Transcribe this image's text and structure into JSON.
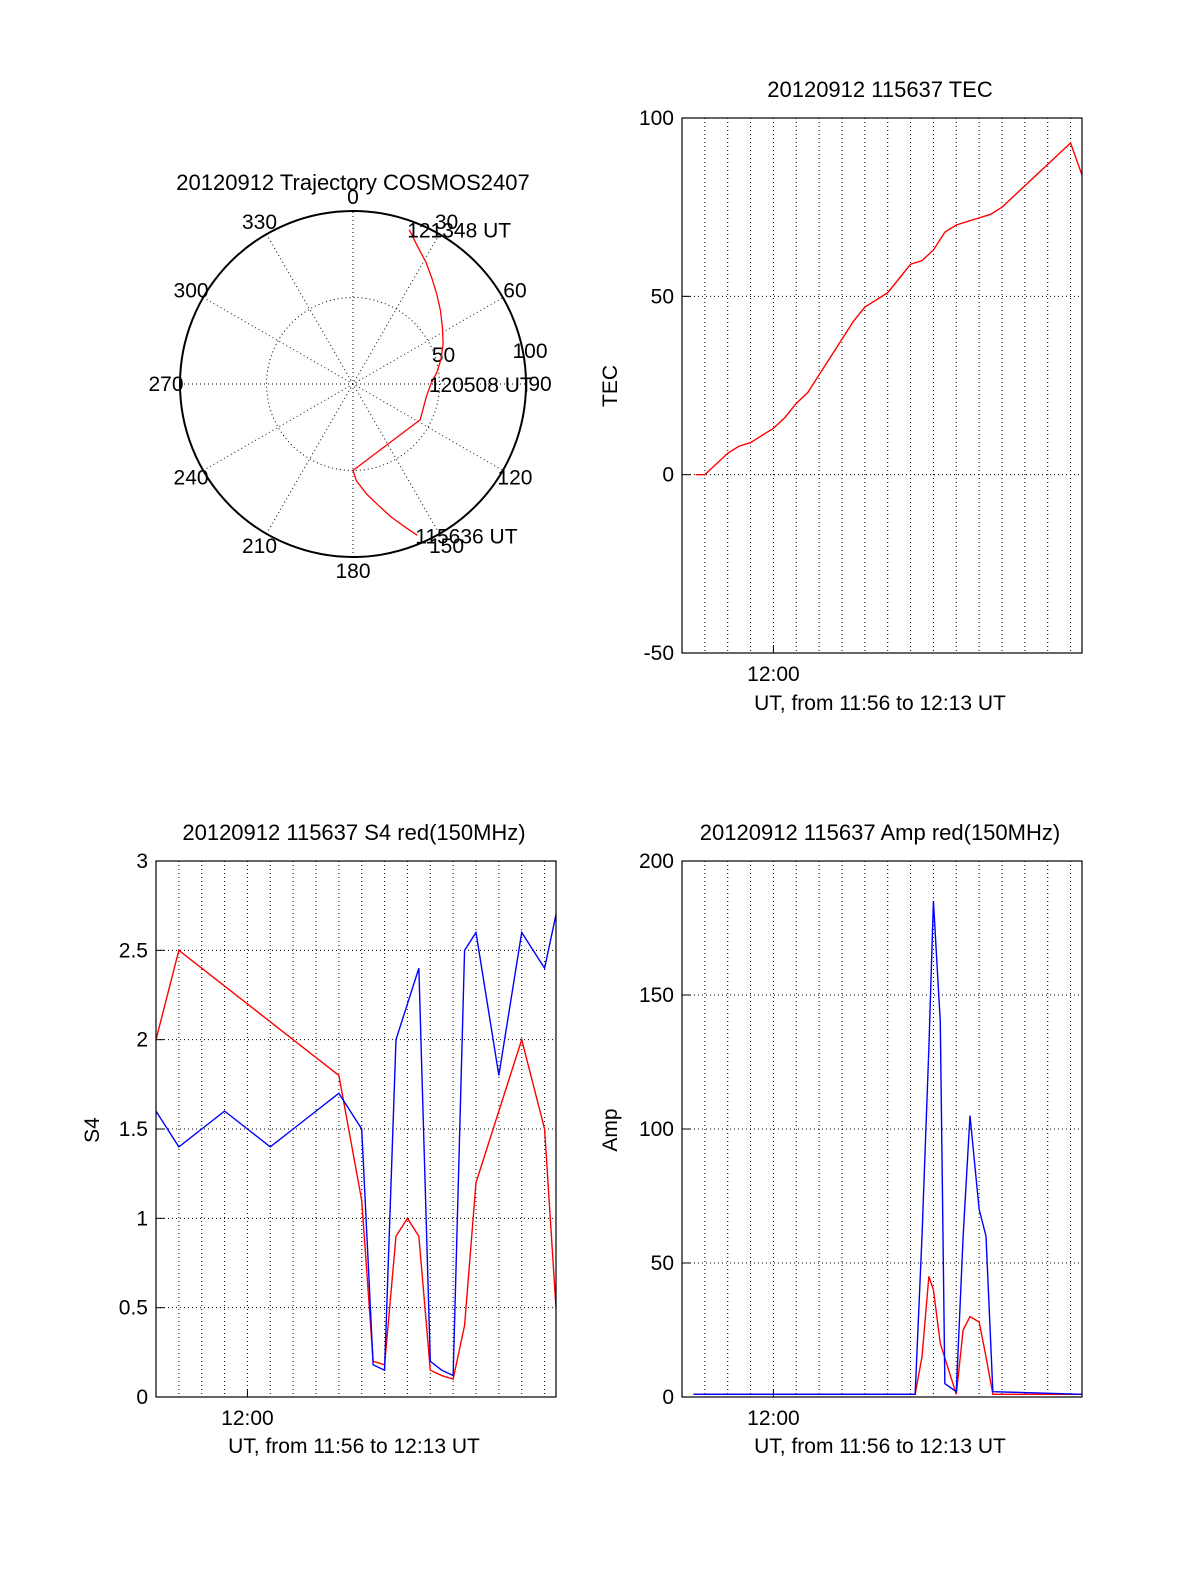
{
  "colors": {
    "red": "#ff0000",
    "blue": "#0000ff",
    "black": "#000000"
  },
  "chart_data": [
    {
      "id": "trajectory",
      "type": "polar",
      "title": "20120912 Trajectory COSMOS2407",
      "angle_labels": [
        "0",
        "30",
        "60",
        "90",
        "120",
        "150",
        "180",
        "210",
        "240",
        "270",
        "300",
        "330"
      ],
      "radial_labels": [
        "50",
        "100"
      ],
      "rmax": 100,
      "trajectory": {
        "azimuth_deg": [
          157,
          160,
          164,
          168,
          173,
          178,
          180,
          118,
          100,
          90,
          82,
          74,
          66,
          58,
          50,
          43,
          37,
          31,
          25,
          20
        ],
        "zenith_dist": [
          95,
          88,
          80,
          72,
          64,
          56,
          50,
          44,
          43,
          45,
          49,
          53,
          57,
          61,
          66,
          71,
          76,
          82,
          88,
          95
        ]
      },
      "annotations": [
        {
          "text": "121348 UT",
          "azimuth_deg": 20,
          "zenith_dist": 95
        },
        {
          "text": "120508 UT",
          "azimuth_deg": 90,
          "zenith_dist": 45
        },
        {
          "text": "115636 UT",
          "azimuth_deg": 157,
          "zenith_dist": 95
        }
      ]
    },
    {
      "id": "tec",
      "type": "line",
      "title": "20120912 115637 TEC",
      "ylabel": "TEC",
      "xlabel": "UT, from 11:56 to 12:13 UT",
      "xlim": [
        0,
        17.5
      ],
      "ylim": [
        -50,
        100
      ],
      "yticks": [
        "-50",
        "0",
        "50",
        "100"
      ],
      "xtick_label": "12:00",
      "series": [
        {
          "color": "red",
          "x": [
            0.6,
            1.0,
            1.5,
            2.0,
            2.5,
            3.0,
            3.5,
            4.0,
            4.5,
            5.0,
            5.5,
            6.0,
            6.5,
            7.0,
            7.5,
            8.0,
            8.5,
            9.0,
            9.5,
            10.0,
            10.5,
            11.0,
            11.5,
            12.0,
            12.5,
            13.0,
            13.5,
            14.0,
            14.5,
            15.0,
            15.5,
            16.0,
            16.5,
            17.0,
            17.5
          ],
          "y": [
            0,
            0,
            3,
            6,
            8,
            9,
            11,
            13,
            16,
            20,
            23,
            28,
            33,
            38,
            43,
            47,
            49,
            51,
            55,
            59,
            60,
            63,
            68,
            70,
            71,
            72,
            73,
            75,
            78,
            81,
            84,
            87,
            90,
            93,
            84
          ]
        }
      ]
    },
    {
      "id": "s4",
      "type": "line",
      "title": "20120912 115637 S4 red(150MHz)",
      "ylabel": "S4",
      "xlabel": "UT, from 11:56 to 12:13 UT",
      "xlim": [
        0,
        17.5
      ],
      "ylim": [
        0,
        3
      ],
      "yticks": [
        "0",
        "0.5",
        "1",
        "1.5",
        "2",
        "2.5",
        "3"
      ],
      "xtick_label": "12:00",
      "series": [
        {
          "color": "red",
          "x": [
            0,
            1,
            2,
            3,
            4,
            5,
            6,
            7,
            8,
            9,
            9.5,
            10,
            10.5,
            11,
            11.5,
            12,
            12.5,
            13,
            13.5,
            14,
            15,
            16,
            17,
            17.5
          ],
          "y": [
            2.0,
            2.5,
            2.4,
            2.3,
            2.2,
            2.1,
            2.0,
            1.9,
            1.8,
            1.1,
            0.2,
            0.18,
            0.9,
            1.0,
            0.9,
            0.15,
            0.12,
            0.1,
            0.4,
            1.2,
            1.6,
            2.0,
            1.5,
            0.5
          ]
        },
        {
          "color": "blue",
          "x": [
            0,
            1,
            2,
            3,
            4,
            5,
            6,
            7,
            8,
            9,
            9.5,
            10,
            10.5,
            11,
            11.5,
            12,
            12.5,
            13,
            13.5,
            14,
            15,
            16,
            17,
            17.5
          ],
          "y": [
            1.6,
            1.4,
            1.5,
            1.6,
            1.5,
            1.4,
            1.5,
            1.6,
            1.7,
            1.5,
            0.18,
            0.15,
            2.0,
            2.2,
            2.4,
            0.2,
            0.15,
            0.12,
            2.5,
            2.6,
            1.8,
            2.6,
            2.4,
            2.7
          ]
        }
      ]
    },
    {
      "id": "amp",
      "type": "line",
      "title": "20120912 115637 Amp red(150MHz)",
      "ylabel": "Amp",
      "xlabel": "UT, from 11:56 to 12:13 UT",
      "xlim": [
        0,
        17.5
      ],
      "ylim": [
        0,
        200
      ],
      "yticks": [
        "0",
        "50",
        "100",
        "150",
        "200"
      ],
      "xtick_label": "12:00",
      "series": [
        {
          "color": "red",
          "x": [
            0.5,
            3,
            6,
            9,
            10.2,
            10.5,
            10.8,
            11.0,
            11.3,
            12.0,
            12.3,
            12.6,
            13.0,
            13.3,
            13.6,
            17.5
          ],
          "y": [
            1,
            1,
            1,
            1,
            1,
            15,
            45,
            40,
            20,
            1,
            25,
            30,
            28,
            15,
            1,
            1
          ]
        },
        {
          "color": "blue",
          "x": [
            0.5,
            3,
            6,
            9,
            10.2,
            10.5,
            10.8,
            11.0,
            11.3,
            11.5,
            12.0,
            12.3,
            12.6,
            13.0,
            13.3,
            13.6,
            17.5
          ],
          "y": [
            1,
            1,
            1,
            1,
            1,
            60,
            130,
            185,
            140,
            5,
            2,
            60,
            105,
            70,
            60,
            2,
            1
          ]
        }
      ]
    }
  ]
}
